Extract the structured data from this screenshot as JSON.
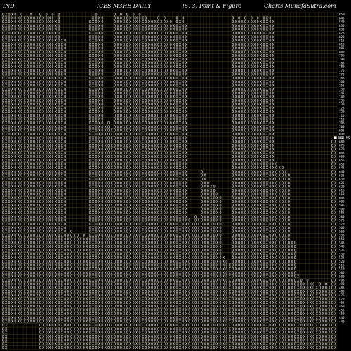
{
  "header": {
    "left": "IND",
    "center_left": "ICES M3HE DAILY",
    "center_right": "(5, 3) Point & Figure",
    "right": "Charts MunafaSutra.com"
  },
  "chart_data": {
    "type": "point-and-figure",
    "title": "ICES M3HE DAILY",
    "box_size": 5,
    "reversal": 3,
    "current_price_label": "682.99",
    "current_price": 682.99,
    "ylim": [
      440,
      850
    ],
    "y_ticks": [
      "850",
      "845",
      "840",
      "835",
      "830",
      "825",
      "820",
      "815",
      "810",
      "805",
      "800",
      "795",
      "790",
      "785",
      "780",
      "775",
      "770",
      "765",
      "760",
      "755",
      "750",
      "745",
      "740",
      "735",
      "730",
      "725",
      "720",
      "715",
      "710",
      "705",
      "700",
      "695",
      "690",
      "685",
      "680",
      "675",
      "670",
      "665",
      "660",
      "655",
      "650",
      "645",
      "640",
      "635",
      "630",
      "625",
      "620",
      "615",
      "610",
      "605",
      "600",
      "595",
      "590",
      "585",
      "580",
      "575",
      "570",
      "565",
      "560",
      "555",
      "550",
      "545",
      "540",
      "535",
      "530",
      "525",
      "520",
      "515",
      "510",
      "505",
      "500",
      "495",
      "490",
      "485",
      "480",
      "475",
      "470",
      "465",
      "460",
      "455",
      "450",
      "445",
      "440"
    ],
    "columns": [
      {
        "type": "O",
        "low": 400,
        "high": 850
      },
      {
        "type": "X",
        "low": 400,
        "high": 850
      },
      {
        "type": "O",
        "low": 440,
        "high": 850
      },
      {
        "type": "X",
        "low": 440,
        "high": 850
      },
      {
        "type": "O",
        "low": 440,
        "high": 850
      },
      {
        "type": "X",
        "low": 440,
        "high": 845
      },
      {
        "type": "O",
        "low": 440,
        "high": 850
      },
      {
        "type": "X",
        "low": 440,
        "high": 845
      },
      {
        "type": "O",
        "low": 440,
        "high": 845
      },
      {
        "type": "X",
        "low": 440,
        "high": 850
      },
      {
        "type": "O",
        "low": 440,
        "high": 845
      },
      {
        "type": "X",
        "low": 440,
        "high": 845
      },
      {
        "type": "O",
        "low": 400,
        "high": 850
      },
      {
        "type": "X",
        "low": 400,
        "high": 845
      },
      {
        "type": "O",
        "low": 400,
        "high": 850
      },
      {
        "type": "X",
        "low": 400,
        "high": 845
      },
      {
        "type": "O",
        "low": 400,
        "high": 850
      },
      {
        "type": "X",
        "low": 400,
        "high": 840
      },
      {
        "type": "O",
        "low": 400,
        "high": 850
      },
      {
        "type": "X",
        "low": 400,
        "high": 815
      },
      {
        "type": "O",
        "low": 400,
        "high": 815
      },
      {
        "type": "X",
        "low": 400,
        "high": 555
      },
      {
        "type": "O",
        "low": 400,
        "high": 560
      },
      {
        "type": "X",
        "low": 400,
        "high": 555
      },
      {
        "type": "O",
        "low": 400,
        "high": 555
      },
      {
        "type": "X",
        "low": 400,
        "high": 550
      },
      {
        "type": "O",
        "low": 400,
        "high": 555
      },
      {
        "type": "X",
        "low": 400,
        "high": 550
      },
      {
        "type": "O",
        "low": 400,
        "high": 840
      },
      {
        "type": "X",
        "low": 400,
        "high": 845
      },
      {
        "type": "O",
        "low": 400,
        "high": 850
      },
      {
        "type": "X",
        "low": 400,
        "high": 845
      },
      {
        "type": "O",
        "low": 400,
        "high": 845
      },
      {
        "type": "X",
        "low": 400,
        "high": 700
      },
      {
        "type": "O",
        "low": 400,
        "high": 705
      },
      {
        "type": "X",
        "low": 400,
        "high": 695
      },
      {
        "type": "O",
        "low": 400,
        "high": 850
      },
      {
        "type": "X",
        "low": 400,
        "high": 845
      },
      {
        "type": "O",
        "low": 400,
        "high": 850
      },
      {
        "type": "X",
        "low": 400,
        "high": 845
      },
      {
        "type": "O",
        "low": 400,
        "high": 850
      },
      {
        "type": "X",
        "low": 400,
        "high": 845
      },
      {
        "type": "O",
        "low": 400,
        "high": 850
      },
      {
        "type": "X",
        "low": 400,
        "high": 845
      },
      {
        "type": "O",
        "low": 400,
        "high": 850
      },
      {
        "type": "X",
        "low": 400,
        "high": 845
      },
      {
        "type": "O",
        "low": 400,
        "high": 845
      },
      {
        "type": "X",
        "low": 400,
        "high": 840
      },
      {
        "type": "O",
        "low": 400,
        "high": 840
      },
      {
        "type": "X",
        "low": 400,
        "high": 840
      },
      {
        "type": "O",
        "low": 400,
        "high": 845
      },
      {
        "type": "X",
        "low": 400,
        "high": 840
      },
      {
        "type": "O",
        "low": 400,
        "high": 845
      },
      {
        "type": "X",
        "low": 400,
        "high": 840
      },
      {
        "type": "O",
        "low": 400,
        "high": 840
      },
      {
        "type": "X",
        "low": 400,
        "high": 835
      },
      {
        "type": "O",
        "low": 400,
        "high": 845
      },
      {
        "type": "X",
        "low": 400,
        "high": 840
      },
      {
        "type": "O",
        "low": 400,
        "high": 845
      },
      {
        "type": "X",
        "low": 400,
        "high": 835
      },
      {
        "type": "O",
        "low": 400,
        "high": 575
      },
      {
        "type": "X",
        "low": 400,
        "high": 570
      },
      {
        "type": "O",
        "low": 400,
        "high": 580
      },
      {
        "type": "X",
        "low": 400,
        "high": 575
      },
      {
        "type": "O",
        "low": 400,
        "high": 640
      },
      {
        "type": "X",
        "low": 400,
        "high": 635
      },
      {
        "type": "O",
        "low": 400,
        "high": 625
      },
      {
        "type": "X",
        "low": 400,
        "high": 620
      },
      {
        "type": "O",
        "low": 400,
        "high": 620
      },
      {
        "type": "X",
        "low": 400,
        "high": 610
      },
      {
        "type": "O",
        "low": 400,
        "high": 605
      },
      {
        "type": "X",
        "low": 400,
        "high": 525
      },
      {
        "type": "O",
        "low": 400,
        "high": 520
      },
      {
        "type": "X",
        "low": 400,
        "high": 515
      },
      {
        "type": "O",
        "low": 400,
        "high": 845
      },
      {
        "type": "X",
        "low": 400,
        "high": 840
      },
      {
        "type": "O",
        "low": 400,
        "high": 845
      },
      {
        "type": "X",
        "low": 400,
        "high": 840
      },
      {
        "type": "O",
        "low": 400,
        "high": 845
      },
      {
        "type": "X",
        "low": 400,
        "high": 840
      },
      {
        "type": "O",
        "low": 400,
        "high": 845
      },
      {
        "type": "X",
        "low": 400,
        "high": 840
      },
      {
        "type": "O",
        "low": 400,
        "high": 845
      },
      {
        "type": "X",
        "low": 400,
        "high": 840
      },
      {
        "type": "O",
        "low": 400,
        "high": 845
      },
      {
        "type": "X",
        "low": 400,
        "high": 845
      },
      {
        "type": "O",
        "low": 400,
        "high": 845
      },
      {
        "type": "X",
        "low": 400,
        "high": 840
      },
      {
        "type": "O",
        "low": 400,
        "high": 650
      },
      {
        "type": "X",
        "low": 400,
        "high": 645
      },
      {
        "type": "O",
        "low": 400,
        "high": 645
      },
      {
        "type": "X",
        "low": 400,
        "high": 640
      },
      {
        "type": "O",
        "low": 400,
        "high": 635
      },
      {
        "type": "X",
        "low": 400,
        "high": 545
      },
      {
        "type": "O",
        "low": 400,
        "high": 545
      },
      {
        "type": "X",
        "low": 400,
        "high": 500
      },
      {
        "type": "O",
        "low": 400,
        "high": 495
      },
      {
        "type": "X",
        "low": 400,
        "high": 490
      },
      {
        "type": "O",
        "low": 400,
        "high": 495
      },
      {
        "type": "X",
        "low": 400,
        "high": 490
      },
      {
        "type": "O",
        "low": 400,
        "high": 490
      },
      {
        "type": "X",
        "low": 400,
        "high": 485
      },
      {
        "type": "O",
        "low": 400,
        "high": 490
      },
      {
        "type": "X",
        "low": 400,
        "high": 485
      },
      {
        "type": "O",
        "low": 400,
        "high": 490
      },
      {
        "type": "X",
        "low": 400,
        "high": 485
      },
      {
        "type": "O",
        "low": 400,
        "high": 680
      },
      {
        "type": "X",
        "low": 400,
        "high": 682.99
      }
    ]
  }
}
